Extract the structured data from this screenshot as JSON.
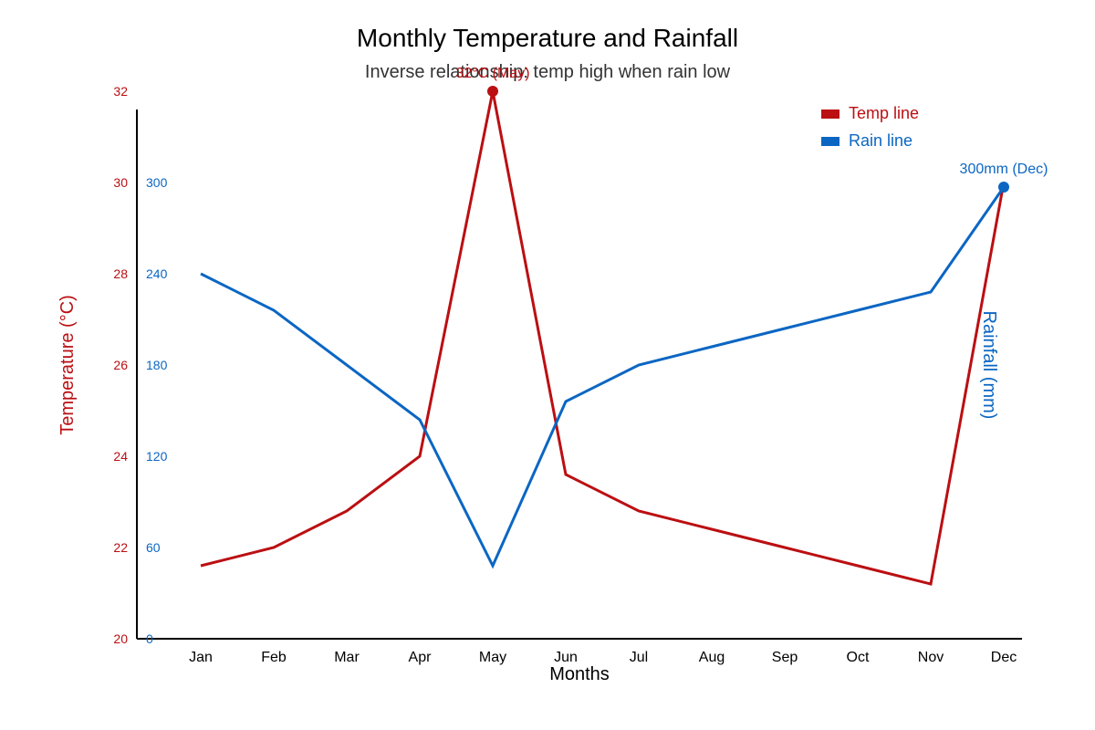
{
  "chart_data": {
    "type": "line",
    "title": "Monthly Temperature and Rainfall",
    "subtitle": "Inverse relationship: temp high when rain low",
    "xlabel": "Months",
    "ylabel_left": "Temperature (°C)",
    "ylabel_right": "Rainfall (mm)",
    "categories": [
      "Jan",
      "Feb",
      "Mar",
      "Apr",
      "May",
      "Jun",
      "Jul",
      "Aug",
      "Sep",
      "Oct",
      "Nov",
      "Dec"
    ],
    "temp_axis": {
      "range": [
        20,
        32
      ],
      "ticks": [
        "20",
        "22",
        "24",
        "26",
        "28",
        "30",
        "32"
      ]
    },
    "rain_axis": {
      "range": [
        0,
        348
      ],
      "ticks": [
        "0",
        "60",
        "120",
        "180",
        "240",
        "300"
      ]
    },
    "grid": false,
    "legend_position": "top-right",
    "series": [
      {
        "name": "Temp line",
        "axis": "temp",
        "color": "#bb0f12",
        "values": [
          21.6,
          22.0,
          22.8,
          24.0,
          32.0,
          23.6,
          22.8,
          22.4,
          22.0,
          21.6,
          21.2,
          30.0
        ]
      },
      {
        "name": "Rain line",
        "axis": "rain",
        "color": "#0b66c3",
        "values": [
          240,
          216,
          180,
          144,
          48,
          156,
          180,
          192,
          204,
          216,
          228,
          297
        ]
      }
    ],
    "annotations": [
      {
        "text": "32°C (May)",
        "series": 0,
        "index": 4,
        "color": "#bb0f12"
      },
      {
        "text": "300mm (Dec)",
        "series": 1,
        "index": 11,
        "color": "#0b66c3"
      }
    ]
  }
}
